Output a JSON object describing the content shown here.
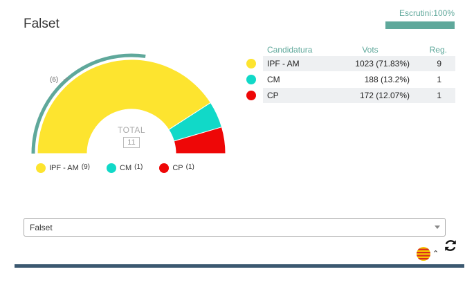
{
  "title": "Falset",
  "scrutiny": {
    "label": "Escrutini:100%",
    "fraction": 1.0,
    "color": "#5fa89b"
  },
  "chart": {
    "total_label": "TOTAL",
    "total_value": "11",
    "majority_marker": "(6)",
    "majority_fraction": 0.5455
  },
  "chart_data": {
    "type": "pie",
    "subtype": "semicircle",
    "total": "11",
    "series": [
      {
        "name": "IPF - AM",
        "value": 9,
        "color": "#fde42f"
      },
      {
        "name": "CM",
        "value": 1,
        "color": "#11d9c8"
      },
      {
        "name": "CP",
        "value": 1,
        "color": "#ee0707"
      }
    ]
  },
  "legend": [
    {
      "name": "IPF - AM",
      "seats": "(9)",
      "color": "#fde42f"
    },
    {
      "name": "CM",
      "seats": "(1)",
      "color": "#11d9c8"
    },
    {
      "name": "CP",
      "seats": "(1)",
      "color": "#ee0707"
    }
  ],
  "results": {
    "headers": {
      "candidature": "Candidatura",
      "votes": "Vots",
      "seats": "Reg."
    },
    "rows": [
      {
        "name": "IPF - AM",
        "votes": "1023 (71.83%)",
        "seats": "9",
        "color": "#fde42f"
      },
      {
        "name": "CM",
        "votes": "188 (13.2%)",
        "seats": "1",
        "color": "#11d9c8"
      },
      {
        "name": "CP",
        "votes": "172 (12.07%)",
        "seats": "1",
        "color": "#ee0707"
      }
    ]
  },
  "municipality_select": {
    "value": "Falset"
  },
  "icons": {
    "language": "catalan-flag-icon",
    "language_toggle": "chevron-up-icon",
    "refresh": "refresh-icon"
  },
  "colors": {
    "accent": "#5fa89b",
    "bottom_bar": "#3b5870"
  }
}
